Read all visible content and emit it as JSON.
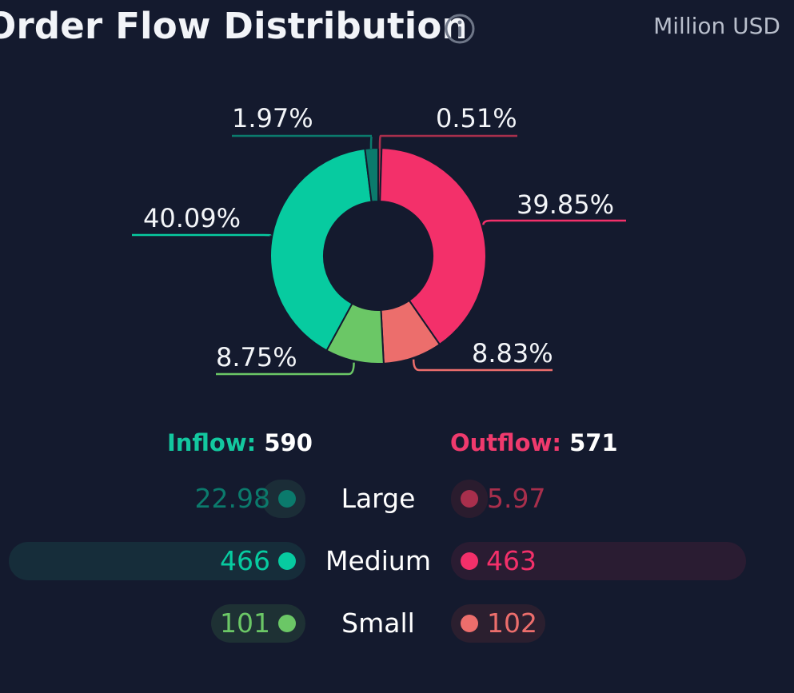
{
  "header": {
    "title": "Order Flow Distribution",
    "unit": "Million USD"
  },
  "colors": {
    "background": "#141a2e",
    "inflow_large": "#0b7a6c",
    "inflow_medium": "#07cba0",
    "inflow_small": "#6bc766",
    "outflow_large": "#a82f4c",
    "outflow_medium": "#f3306a",
    "outflow_small": "#ec6e6c"
  },
  "chart_data": {
    "type": "pie",
    "variant": "donut",
    "unit": "Million USD",
    "slices": [
      {
        "name": "Outflow Large",
        "value": 0.51,
        "label": "0.51%"
      },
      {
        "name": "Outflow Medium",
        "value": 39.85,
        "label": "39.85%"
      },
      {
        "name": "Outflow Small",
        "value": 8.83,
        "label": "8.83%"
      },
      {
        "name": "Inflow Small",
        "value": 8.75,
        "label": "8.75%"
      },
      {
        "name": "Inflow Medium",
        "value": 40.09,
        "label": "40.09%"
      },
      {
        "name": "Inflow Large",
        "value": 1.97,
        "label": "1.97%"
      }
    ]
  },
  "summary": {
    "inflow_label": "Inflow:",
    "inflow_total": "590",
    "outflow_label": "Outflow:",
    "outflow_total": "571",
    "rows": [
      {
        "label": "Large",
        "inflow": "22.98",
        "outflow": "5.97"
      },
      {
        "label": "Medium",
        "inflow": "466",
        "outflow": "463"
      },
      {
        "label": "Small",
        "inflow": "101",
        "outflow": "102"
      }
    ]
  }
}
